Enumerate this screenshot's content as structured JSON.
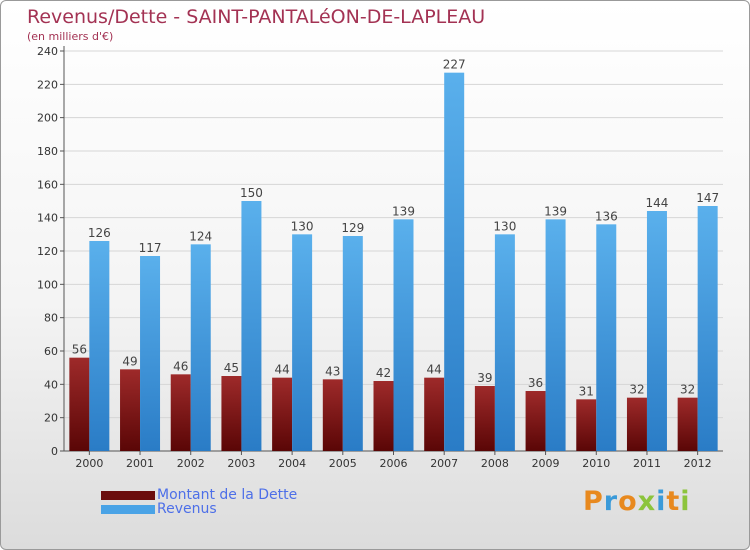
{
  "title": "Revenus/Dette - SAINT-PANTALéON-DE-LAPLEAU",
  "subtitle": "(en milliers d'€)",
  "logo_text": "Proxiti",
  "colors": {
    "dette_top": "#9e2a2a",
    "dette_bottom": "#5a0606",
    "revenus_top": "#5ab0ec",
    "revenus_bottom": "#2a7cc6",
    "axis": "#555555",
    "grid": "#d6d6d6",
    "legend_text": "#4d6fe8",
    "title": "#a33253"
  },
  "legend": [
    {
      "name": "Montant de la Dette",
      "color": "#6b0d0d"
    },
    {
      "name": "Revenus",
      "color": "#4aa3e6"
    }
  ],
  "chart_data": {
    "type": "bar",
    "title": "Revenus/Dette - SAINT-PANTALéON-DE-LAPLEAU",
    "subtitle": "(en milliers d'€)",
    "xlabel": "",
    "ylabel": "",
    "ylim": [
      0,
      240
    ],
    "yticks": [
      0,
      20,
      40,
      60,
      80,
      100,
      120,
      140,
      160,
      180,
      200,
      220,
      240
    ],
    "grid": true,
    "legend_position": "bottom-left",
    "categories": [
      "2000",
      "2001",
      "2002",
      "2003",
      "2004",
      "2005",
      "2006",
      "2007",
      "2008",
      "2009",
      "2010",
      "2011",
      "2012"
    ],
    "series": [
      {
        "name": "Montant de la Dette",
        "values": [
          56,
          49,
          46,
          45,
          44,
          43,
          42,
          44,
          39,
          36,
          31,
          32,
          32
        ]
      },
      {
        "name": "Revenus",
        "values": [
          126,
          117,
          124,
          150,
          130,
          129,
          139,
          227,
          130,
          139,
          136,
          144,
          147
        ]
      }
    ]
  }
}
